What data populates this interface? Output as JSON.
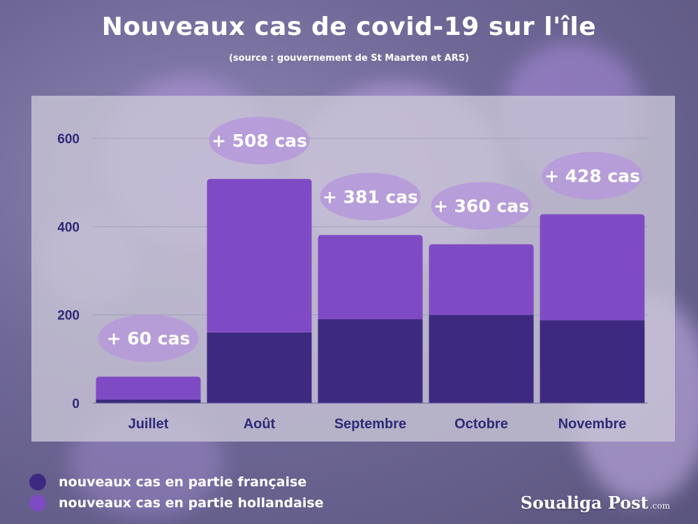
{
  "title": "Nouveaux cas de covid-19 sur l'île",
  "subtitle": "(source :  gouvernement de St Maarten et ARS)",
  "legend": [
    {
      "label": "nouveaux cas en partie française",
      "color": "#3d2a80"
    },
    {
      "label": "nouveaux cas en partie hollandaise",
      "color": "#7f4bc4"
    }
  ],
  "logo": {
    "name": "Soualiga Post",
    "suffix": ".com"
  },
  "chart_data": {
    "type": "bar",
    "stacked": true,
    "categories": [
      "Juillet",
      "Août",
      "Septembre",
      "Octobre",
      "Novembre"
    ],
    "series": [
      {
        "name": "nouveaux cas en partie française",
        "values": [
          8,
          160,
          190,
          200,
          188
        ],
        "color": "#3d2a80"
      },
      {
        "name": "nouveaux cas en partie hollandaise",
        "values": [
          52,
          348,
          191,
          160,
          240
        ],
        "color": "#7f4bc4"
      }
    ],
    "totals_labels": [
      "+  60 cas",
      "+ 508 cas",
      "+ 381 cas",
      "+ 360 cas",
      "+ 428 cas"
    ],
    "yticks": [
      0,
      200,
      400,
      600
    ],
    "ylim": [
      0,
      660
    ],
    "grid": true,
    "legend_position": "bottom-left",
    "colors": {
      "panel": "#c9c6d6",
      "tick_text": "#2e2a78",
      "category_text": "#2e2a78",
      "bubble": "#b69ad9",
      "bubble_text": "#ffffff",
      "grid": "#a29fbd"
    }
  }
}
